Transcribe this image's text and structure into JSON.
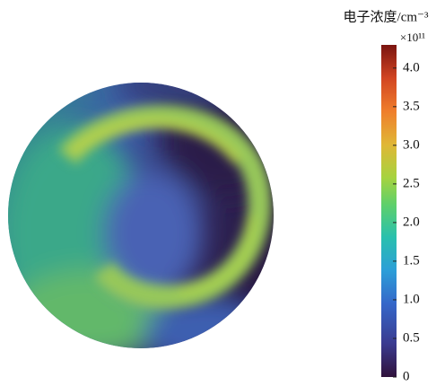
{
  "chart_data": {
    "type": "heatmap",
    "colorbar": {
      "title": "电子浓度/cm⁻³",
      "multiplier": "×10¹¹",
      "lim": [
        0,
        4.3
      ],
      "ticks": [
        0,
        0.5,
        {
          "value": 1,
          "label": "1.0"
        },
        1.5,
        {
          "value": 2,
          "label": "2.0"
        },
        2.5,
        {
          "value": 3,
          "label": "3.0"
        },
        3.5,
        {
          "value": 4,
          "label": "4.0"
        }
      ]
    }
  }
}
